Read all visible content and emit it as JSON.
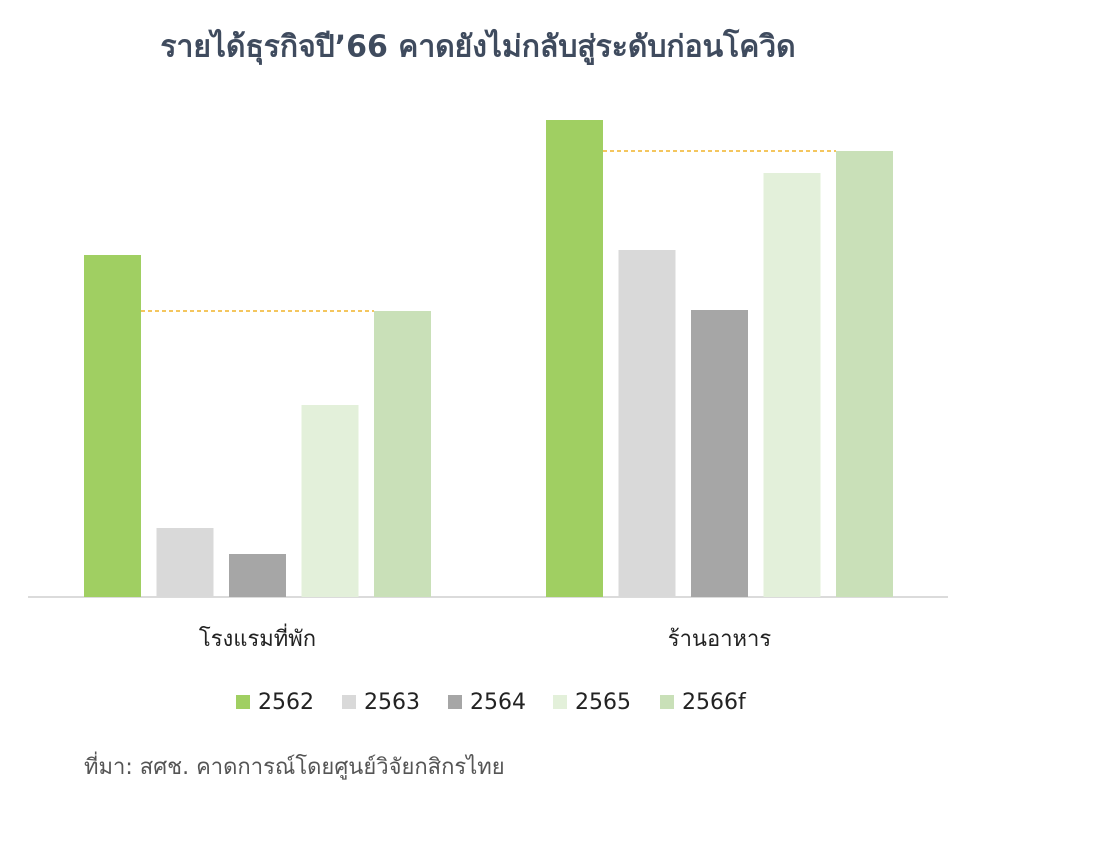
{
  "chart_data": {
    "type": "bar",
    "title": "รายได้ธุรกิจปี’66 คาดยังไม่กลับสู่ระดับก่อนโควิด",
    "categories": [
      "โรงแรมที่พัก",
      "ร้านอาหาร"
    ],
    "series": [
      {
        "name": "2562",
        "color": "#a0cf62",
        "values": [
          342,
          477
        ]
      },
      {
        "name": "2563",
        "color": "#d9d9d9",
        "values": [
          69,
          347
        ]
      },
      {
        "name": "2564",
        "color": "#a6a6a6",
        "values": [
          43,
          287
        ]
      },
      {
        "name": "2565",
        "color": "#e3f0da",
        "values": [
          192,
          424
        ]
      },
      {
        "name": "2566f",
        "color": "#c9e0b8",
        "values": [
          286,
          446
        ]
      }
    ],
    "reference_line_color": "#f0b429",
    "source": "ที่มา: สศช. คาดการณ์โดยศูนย์วิจัยกสิกรไทย"
  }
}
